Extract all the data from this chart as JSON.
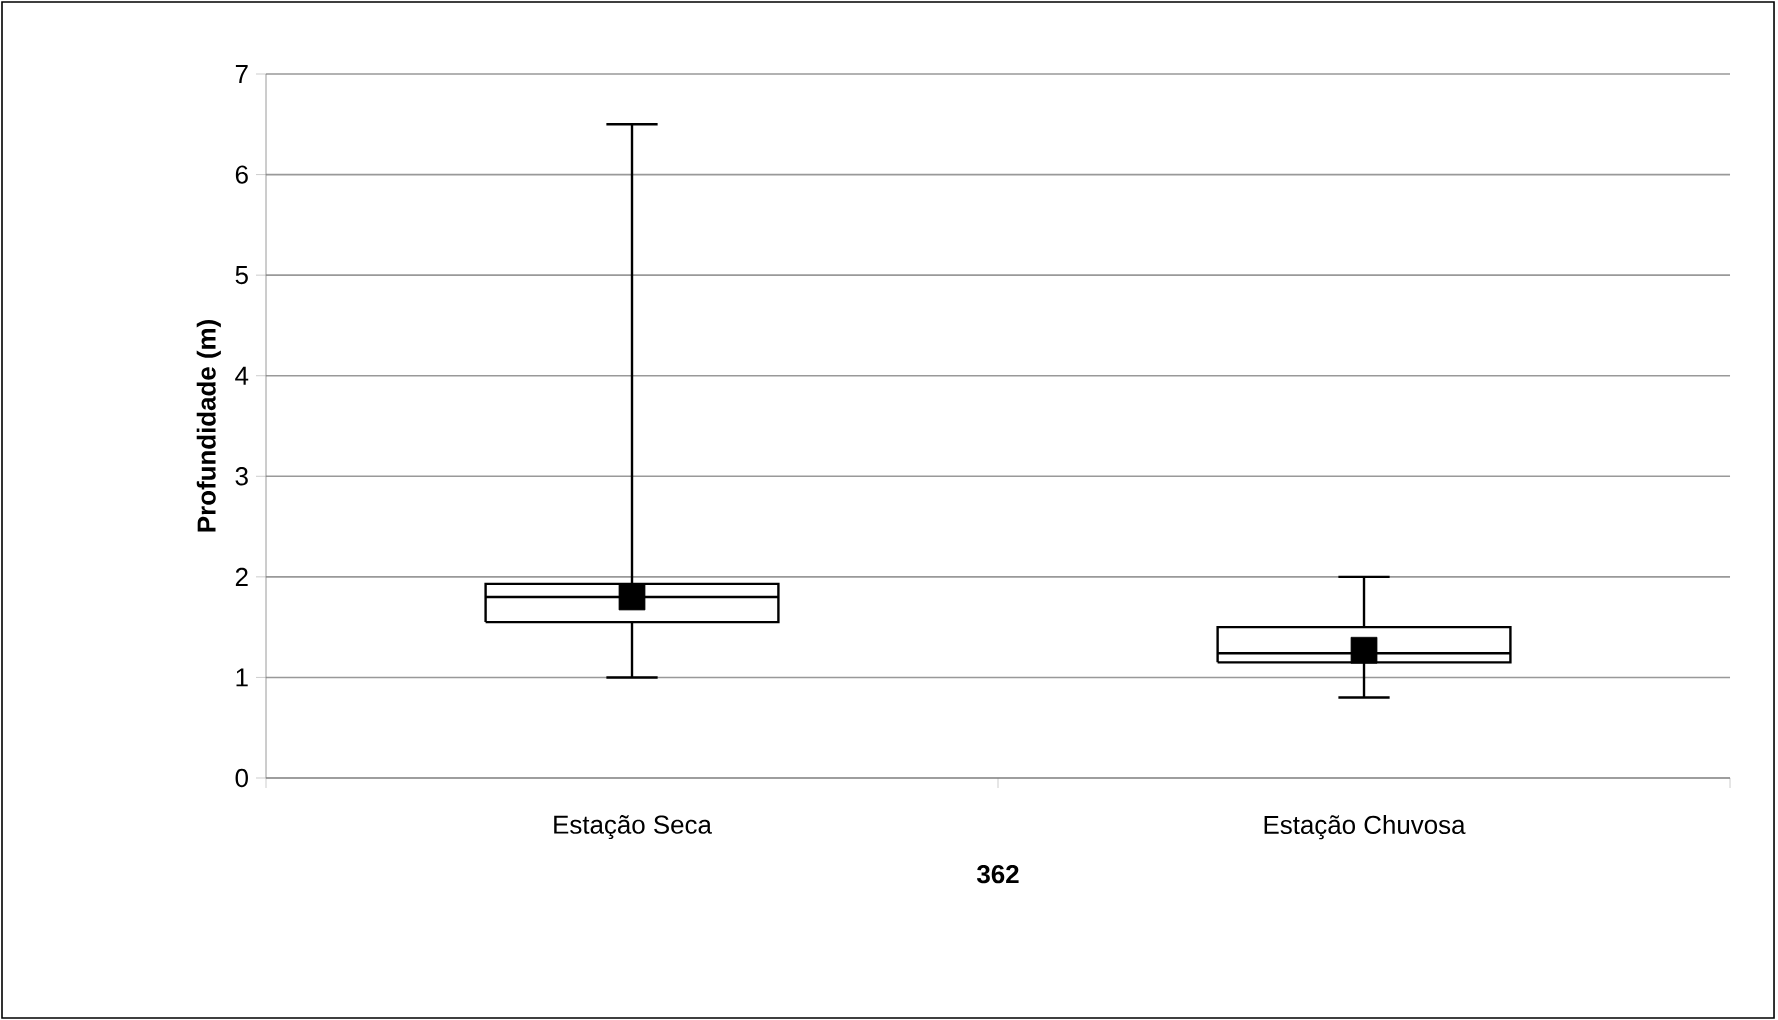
{
  "chart_data": {
    "type": "box",
    "xlabel": "362",
    "ylabel": "Profundidade (m)",
    "categories": [
      "Estação Seca",
      "Estação Chuvosa"
    ],
    "boxes": [
      {
        "low": 1,
        "q1": 1.55,
        "median": 1.8,
        "q3": 1.93,
        "high": 6.5,
        "mean": 1.8
      },
      {
        "low": 0.8,
        "q1": 1.15,
        "median": 1.24,
        "q3": 1.5,
        "high": 2.0,
        "mean": 1.27
      }
    ],
    "ylim": [
      0,
      7
    ],
    "yticks": [
      0,
      1,
      2,
      3,
      4,
      5,
      6,
      7
    ],
    "grid": "y"
  }
}
